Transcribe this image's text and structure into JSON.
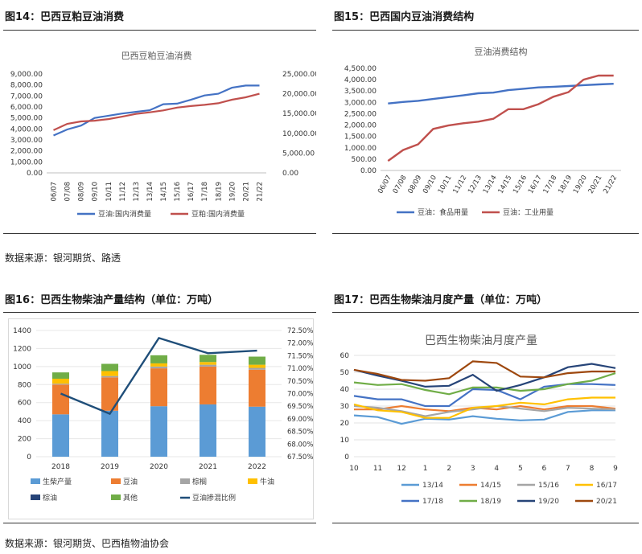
{
  "headings": {
    "fig14": "图14：巴西豆粕豆油消费",
    "fig15": "图15：巴西国内豆油消费结构",
    "fig16": "图16：巴西生物柴油产量结构（单位：万吨）",
    "fig17": "图17：巴西生物柴油月度产量（单位：万吨）"
  },
  "sources": {
    "top": "数据来源：银河期货、路透",
    "bottom": "数据来源：银河期货、巴西植物油协会"
  },
  "colors": {
    "blue": "#4472c4",
    "red": "#c0504d",
    "bar_blue": "#5b9bd5",
    "bar_orange": "#ed7d31",
    "bar_gray": "#a5a5a5",
    "bar_yellow": "#ffc000",
    "bar_darkblue": "#264478",
    "bar_green": "#70ad47",
    "line_navy": "#1f4e79",
    "m_1314": "#5b9bd5",
    "m_1415": "#ed7d31",
    "m_1516": "#a5a5a5",
    "m_1617": "#ffc000",
    "m_1718": "#4472c4",
    "m_1819": "#70ad47",
    "m_1920": "#264478",
    "m_2021": "#9e480e"
  },
  "chart_data": [
    {
      "type": "line",
      "title": "巴西豆粕豆油消费",
      "categories": [
        "06/07",
        "07/08",
        "08/09",
        "09/10",
        "10/11",
        "11/12",
        "12/13",
        "13/14",
        "14/15",
        "15/16",
        "16/17",
        "17/18",
        "18/19",
        "19/20",
        "20/21",
        "21/22"
      ],
      "y_left": {
        "ylim": [
          0,
          9000
        ],
        "ticks": [
          "0.00",
          "1,000.00",
          "2,000.00",
          "3,000.00",
          "4,000.00",
          "5,000.00",
          "6,000.00",
          "7,000.00",
          "8,000.00",
          "9,000.00"
        ]
      },
      "y_right": {
        "ylim": [
          0,
          25000
        ],
        "ticks": [
          "0.00",
          "5,000.00",
          "10,000.00",
          "15,000.00",
          "20,000.00",
          "25,000.00"
        ]
      },
      "series": [
        {
          "name": "豆油:国内消费量",
          "axis": "left",
          "values": [
            3400,
            3950,
            4300,
            5000,
            5200,
            5400,
            5550,
            5700,
            6250,
            6300,
            6650,
            7050,
            7200,
            7750,
            7950,
            7950
          ]
        },
        {
          "name": "豆粕:国内消费量",
          "axis": "right",
          "values": [
            10800,
            12400,
            13000,
            13200,
            13600,
            14200,
            14900,
            15300,
            15800,
            16500,
            16900,
            17200,
            17600,
            18500,
            19100,
            20000
          ]
        }
      ]
    },
    {
      "type": "line",
      "title": "豆油消费结构",
      "categories": [
        "06/07",
        "07/08",
        "08/09",
        "09/10",
        "10/11",
        "11/12",
        "12/13",
        "13/14",
        "14/15",
        "15/16",
        "16/17",
        "17/18",
        "18/19",
        "19/20",
        "20/21",
        "21/22"
      ],
      "ylim": [
        0,
        4500
      ],
      "ticks": [
        "0.00",
        "500.00",
        "1,000.00",
        "1,500.00",
        "2,000.00",
        "2,500.00",
        "3,000.00",
        "3,500.00",
        "4,000.00",
        "4,500.00"
      ],
      "series": [
        {
          "name": "豆油：食品用量",
          "values": [
            2950,
            3020,
            3070,
            3150,
            3230,
            3310,
            3400,
            3430,
            3540,
            3600,
            3660,
            3690,
            3720,
            3760,
            3790,
            3820
          ]
        },
        {
          "name": "豆油：工业用量",
          "values": [
            420,
            900,
            1150,
            1830,
            1980,
            2080,
            2150,
            2280,
            2700,
            2700,
            2920,
            3250,
            3450,
            4000,
            4180,
            4180
          ]
        }
      ]
    },
    {
      "type": "bar",
      "stacked": true,
      "categories": [
        "2018",
        "2019",
        "2020",
        "2021",
        "2022"
      ],
      "y_left": {
        "ylim": [
          0,
          1400
        ],
        "ticks": [
          "0",
          "200",
          "400",
          "600",
          "800",
          "1000",
          "1200",
          "1400"
        ]
      },
      "y_right": {
        "ylim": [
          67.5,
          72.5
        ],
        "ticks": [
          "67.50%",
          "68.00%",
          "68.50%",
          "69.00%",
          "69.50%",
          "70.00%",
          "70.50%",
          "71.00%",
          "71.50%",
          "72.00%",
          "72.50%"
        ]
      },
      "series": [
        {
          "name": "生柴产量",
          "values": [
            470,
            510,
            560,
            580,
            555
          ]
        },
        {
          "name": "豆油",
          "values": [
            330,
            370,
            420,
            420,
            410
          ]
        },
        {
          "name": "棕榈",
          "values": [
            10,
            15,
            20,
            20,
            20
          ]
        },
        {
          "name": "牛油",
          "values": [
            55,
            55,
            35,
            30,
            35
          ]
        },
        {
          "name": "棕油",
          "values": [
            0,
            0,
            0,
            0,
            0
          ]
        },
        {
          "name": "其他",
          "values": [
            70,
            80,
            90,
            80,
            90
          ]
        },
        {
          "name": "豆油掺混比例",
          "axis": "right",
          "type": "line",
          "values": [
            70.0,
            69.2,
            72.2,
            71.6,
            71.7
          ]
        }
      ],
      "legend": "bottom"
    },
    {
      "type": "line",
      "title": "巴西生物柴油月度产量",
      "categories": [
        "10",
        "11",
        "12",
        "1",
        "2",
        "3",
        "4",
        "5",
        "6",
        "7",
        "8",
        "9"
      ],
      "ylim": [
        0,
        60
      ],
      "ticks": [
        "0",
        "10",
        "20",
        "30",
        "40",
        "50",
        "60"
      ],
      "series": [
        {
          "name": "13/14",
          "values": [
            24.5,
            23.5,
            19.5,
            22.5,
            22,
            24,
            22.5,
            21.5,
            22,
            26.5,
            27.5,
            27.5
          ]
        },
        {
          "name": "14/15",
          "values": [
            28,
            28,
            30,
            28,
            27,
            29,
            28,
            30,
            28,
            30,
            30,
            28.5
          ]
        },
        {
          "name": "15/16",
          "values": [
            30,
            29,
            27,
            24,
            26.5,
            28,
            30,
            28.5,
            27,
            29,
            28.5,
            28
          ]
        },
        {
          "name": "16/17",
          "values": [
            31,
            27.5,
            26.5,
            23,
            23,
            29,
            30,
            32,
            31,
            34,
            35,
            35
          ]
        },
        {
          "name": "17/18",
          "values": [
            36,
            34,
            34,
            30,
            30,
            40,
            39.5,
            34,
            41.5,
            43,
            43,
            42.5
          ]
        },
        {
          "name": "18/19",
          "values": [
            44,
            42.5,
            43,
            39.5,
            37,
            41,
            41,
            39,
            40,
            43,
            45,
            49.5
          ]
        },
        {
          "name": "19/20",
          "values": [
            51.5,
            48,
            45,
            41.5,
            42,
            48.5,
            39,
            42.5,
            47,
            53,
            55,
            52.5
          ]
        },
        {
          "name": "20/21",
          "values": [
            51.5,
            49,
            45.5,
            45,
            46.5,
            56.5,
            55.5,
            47.5,
            47,
            49.5,
            50.5,
            50.5
          ]
        }
      ],
      "legend": "bottom"
    }
  ]
}
